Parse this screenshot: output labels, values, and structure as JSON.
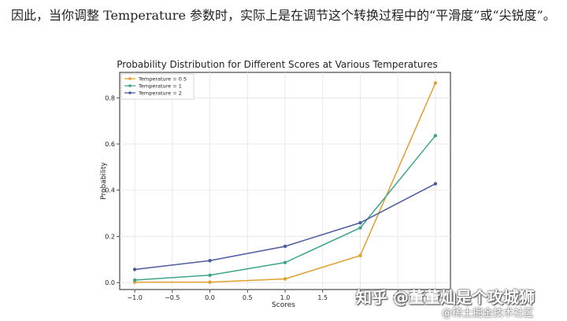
{
  "paragraph": {
    "text": "因此，当你调整 Temperature 参数时，实际上是在调节这个转换过程中的“平滑度”或“尖锐度”。"
  },
  "chart_data": {
    "type": "line",
    "title": "Probability Distribution for Different Scores at Various Temperatures",
    "xlabel": "Scores",
    "ylabel": "Probability",
    "x": [
      -1.0,
      0.0,
      1.0,
      2.0,
      3.0
    ],
    "xlim": [
      -1.2,
      3.2
    ],
    "ylim": [
      -0.03,
      0.91
    ],
    "xticks": [
      -1.0,
      -0.5,
      0.0,
      0.5,
      1.0,
      1.5,
      2.0,
      2.5,
      3.0
    ],
    "xtick_labels": [
      "−1.0",
      "−0.5",
      "0.0",
      "0.5",
      "1.0",
      "1.5",
      "2.0",
      "2.5",
      "3.0"
    ],
    "yticks": [
      0.0,
      0.2,
      0.4,
      0.6,
      0.8
    ],
    "ytick_labels": [
      "0.0",
      "0.2",
      "0.4",
      "0.6",
      "0.8"
    ],
    "grid": true,
    "legend_position": "top-left",
    "series": [
      {
        "name": "Temperature = 0.5",
        "color": "#e0a02e",
        "values": [
          0.002,
          0.002,
          0.016,
          0.117,
          0.864
        ]
      },
      {
        "name": "Temperature = 1",
        "color": "#3fa48e",
        "values": [
          0.011,
          0.032,
          0.087,
          0.237,
          0.636
        ]
      },
      {
        "name": "Temperature = 2",
        "color": "#4a5c9e",
        "values": [
          0.057,
          0.095,
          0.157,
          0.259,
          0.428
        ]
      }
    ]
  },
  "watermark": {
    "line1": "知乎 @董董灿是个攻城狮",
    "line2": "@稀土掘金技术社区"
  }
}
